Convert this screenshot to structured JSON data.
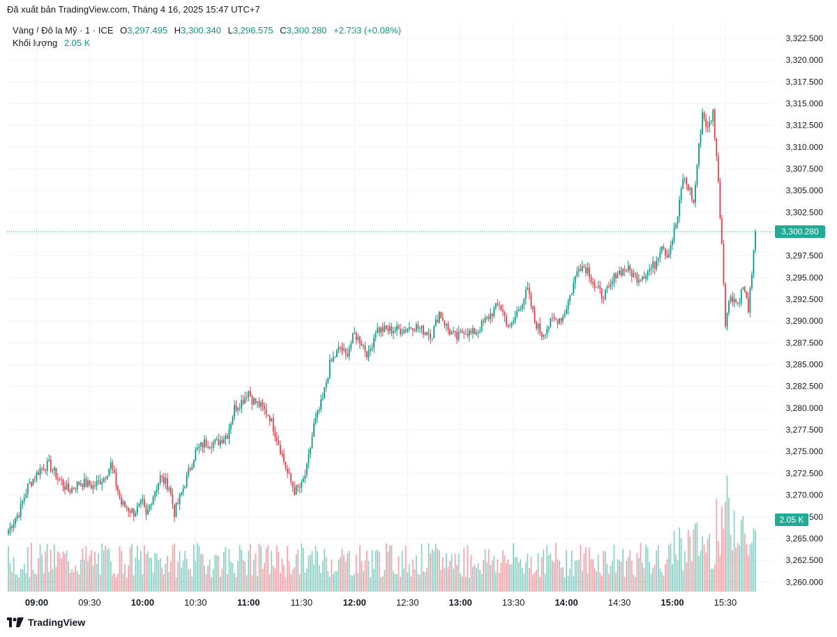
{
  "header": {
    "published": "Đã xuất bản TradingView.com, Tháng 4 16, 2025 15:47 UTC+7"
  },
  "legend": {
    "symbol": "Vàng / Đô la Mỹ · 1 · ICE",
    "open_label": "O",
    "open": "3,297.495",
    "high_label": "H",
    "high": "3,300.340",
    "low_label": "L",
    "low": "3,296.575",
    "close_label": "C",
    "close": "3,300.280",
    "change": "+2.733 (+0.08%)",
    "volume_label": "Khối lượng",
    "volume": "2.05 K"
  },
  "price_tag": "3,300.280",
  "volume_tag": "2.05 K",
  "footer": {
    "brand": "TradingView"
  },
  "colors": {
    "up": "#089981",
    "down": "#F23645",
    "grid": "#F0F3FA",
    "tag": "#22AB94"
  },
  "chart_data": {
    "type": "candlestick",
    "y_ticks": [
      "3,322.500",
      "3,320.000",
      "3,317.500",
      "3,315.000",
      "3,312.500",
      "3,310.000",
      "3,307.500",
      "3,305.000",
      "3,302.500",
      "3,300.000",
      "3,297.500",
      "3,295.000",
      "3,292.500",
      "3,290.000",
      "3,287.500",
      "3,285.000",
      "3,282.500",
      "3,280.000",
      "3,277.500",
      "3,275.000",
      "3,272.500",
      "3,270.000",
      "3,267.500",
      "3,265.000",
      "3,262.500",
      "3,260.000"
    ],
    "ylim": [
      3258.9,
      3324.5
    ],
    "x_ticks": [
      {
        "label": "09:00",
        "bold": true
      },
      {
        "label": "09:30",
        "bold": false
      },
      {
        "label": "10:00",
        "bold": true
      },
      {
        "label": "10:30",
        "bold": false
      },
      {
        "label": "11:00",
        "bold": true
      },
      {
        "label": "11:30",
        "bold": false
      },
      {
        "label": "12:00",
        "bold": true
      },
      {
        "label": "12:30",
        "bold": false
      },
      {
        "label": "13:00",
        "bold": true
      },
      {
        "label": "13:30",
        "bold": false
      },
      {
        "label": "14:00",
        "bold": true
      },
      {
        "label": "14:30",
        "bold": false
      },
      {
        "label": "15:00",
        "bold": true
      },
      {
        "label": "15:30",
        "bold": false
      }
    ],
    "start_time": "08:44",
    "end_time": "15:47",
    "interval_minutes": 1,
    "last_close": 3300.28,
    "close_anchors": [
      [
        "08:44",
        3266.0
      ],
      [
        "08:50",
        3268.0
      ],
      [
        "08:55",
        3271.0
      ],
      [
        "09:02",
        3273.0
      ],
      [
        "09:07",
        3273.5
      ],
      [
        "09:12",
        3272.0
      ],
      [
        "09:18",
        3270.5
      ],
      [
        "09:25",
        3271.5
      ],
      [
        "09:32",
        3271.0
      ],
      [
        "09:38",
        3272.0
      ],
      [
        "09:42",
        3273.5
      ],
      [
        "09:48",
        3269.0
      ],
      [
        "09:55",
        3268.0
      ],
      [
        "10:00",
        3269.0
      ],
      [
        "10:02",
        3267.5
      ],
      [
        "10:05",
        3269.5
      ],
      [
        "10:10",
        3272.0
      ],
      [
        "10:15",
        3271.0
      ],
      [
        "10:18",
        3268.0
      ],
      [
        "10:20",
        3269.0
      ],
      [
        "10:25",
        3272.0
      ],
      [
        "10:30",
        3275.0
      ],
      [
        "10:35",
        3276.0
      ],
      [
        "10:42",
        3276.0
      ],
      [
        "10:48",
        3277.0
      ],
      [
        "10:52",
        3280.0
      ],
      [
        "10:57",
        3281.0
      ],
      [
        "11:00",
        3282.0
      ],
      [
        "11:02",
        3281.0
      ],
      [
        "11:08",
        3280.0
      ],
      [
        "11:12",
        3279.0
      ],
      [
        "11:17",
        3276.0
      ],
      [
        "11:22",
        3272.5
      ],
      [
        "11:26",
        3270.5
      ],
      [
        "11:30",
        3271.0
      ],
      [
        "11:33",
        3273.0
      ],
      [
        "11:37",
        3278.0
      ],
      [
        "11:42",
        3281.0
      ],
      [
        "11:46",
        3285.0
      ],
      [
        "11:52",
        3287.0
      ],
      [
        "11:55",
        3286.0
      ],
      [
        "12:00",
        3288.5
      ],
      [
        "12:04",
        3287.5
      ],
      [
        "12:08",
        3286.0
      ],
      [
        "12:12",
        3289.0
      ],
      [
        "12:20",
        3289.0
      ],
      [
        "12:28",
        3289.0
      ],
      [
        "12:33",
        3289.5
      ],
      [
        "12:38",
        3289.0
      ],
      [
        "12:44",
        3288.5
      ],
      [
        "12:48",
        3291.0
      ],
      [
        "12:53",
        3289.0
      ],
      [
        "12:58",
        3288.0
      ],
      [
        "13:02",
        3289.0
      ],
      [
        "13:06",
        3288.5
      ],
      [
        "13:10",
        3289.0
      ],
      [
        "13:16",
        3290.5
      ],
      [
        "13:22",
        3292.0
      ],
      [
        "13:28",
        3289.0
      ],
      [
        "13:33",
        3291.5
      ],
      [
        "13:38",
        3293.5
      ],
      [
        "13:42",
        3290.0
      ],
      [
        "13:46",
        3288.5
      ],
      [
        "13:52",
        3290.0
      ],
      [
        "13:58",
        3290.5
      ],
      [
        "14:03",
        3293.5
      ],
      [
        "14:07",
        3296.5
      ],
      [
        "14:12",
        3296.0
      ],
      [
        "14:16",
        3294.0
      ],
      [
        "14:20",
        3293.0
      ],
      [
        "14:24",
        3293.5
      ],
      [
        "14:28",
        3295.5
      ],
      [
        "14:34",
        3296.0
      ],
      [
        "14:40",
        3295.0
      ],
      [
        "14:45",
        3295.5
      ],
      [
        "14:50",
        3296.5
      ],
      [
        "14:54",
        3299.0
      ],
      [
        "14:57",
        3297.5
      ],
      [
        "15:00",
        3299.5
      ],
      [
        "15:03",
        3302.0
      ],
      [
        "15:06",
        3306.5
      ],
      [
        "15:10",
        3305.0
      ],
      [
        "15:12",
        3303.5
      ],
      [
        "15:14",
        3308.0
      ],
      [
        "15:17",
        3314.0
      ],
      [
        "15:20",
        3312.0
      ],
      [
        "15:23",
        3314.0
      ],
      [
        "15:25",
        3309.0
      ],
      [
        "15:28",
        3299.0
      ],
      [
        "15:30",
        3290.0
      ],
      [
        "15:33",
        3293.0
      ],
      [
        "15:37",
        3292.0
      ],
      [
        "15:40",
        3294.0
      ],
      [
        "15:43",
        3291.5
      ],
      [
        "15:45",
        3295.0
      ],
      [
        "15:47",
        3300.28
      ]
    ],
    "volume_pattern": "relative 1-minute volume bars, peaking near 15:30"
  }
}
